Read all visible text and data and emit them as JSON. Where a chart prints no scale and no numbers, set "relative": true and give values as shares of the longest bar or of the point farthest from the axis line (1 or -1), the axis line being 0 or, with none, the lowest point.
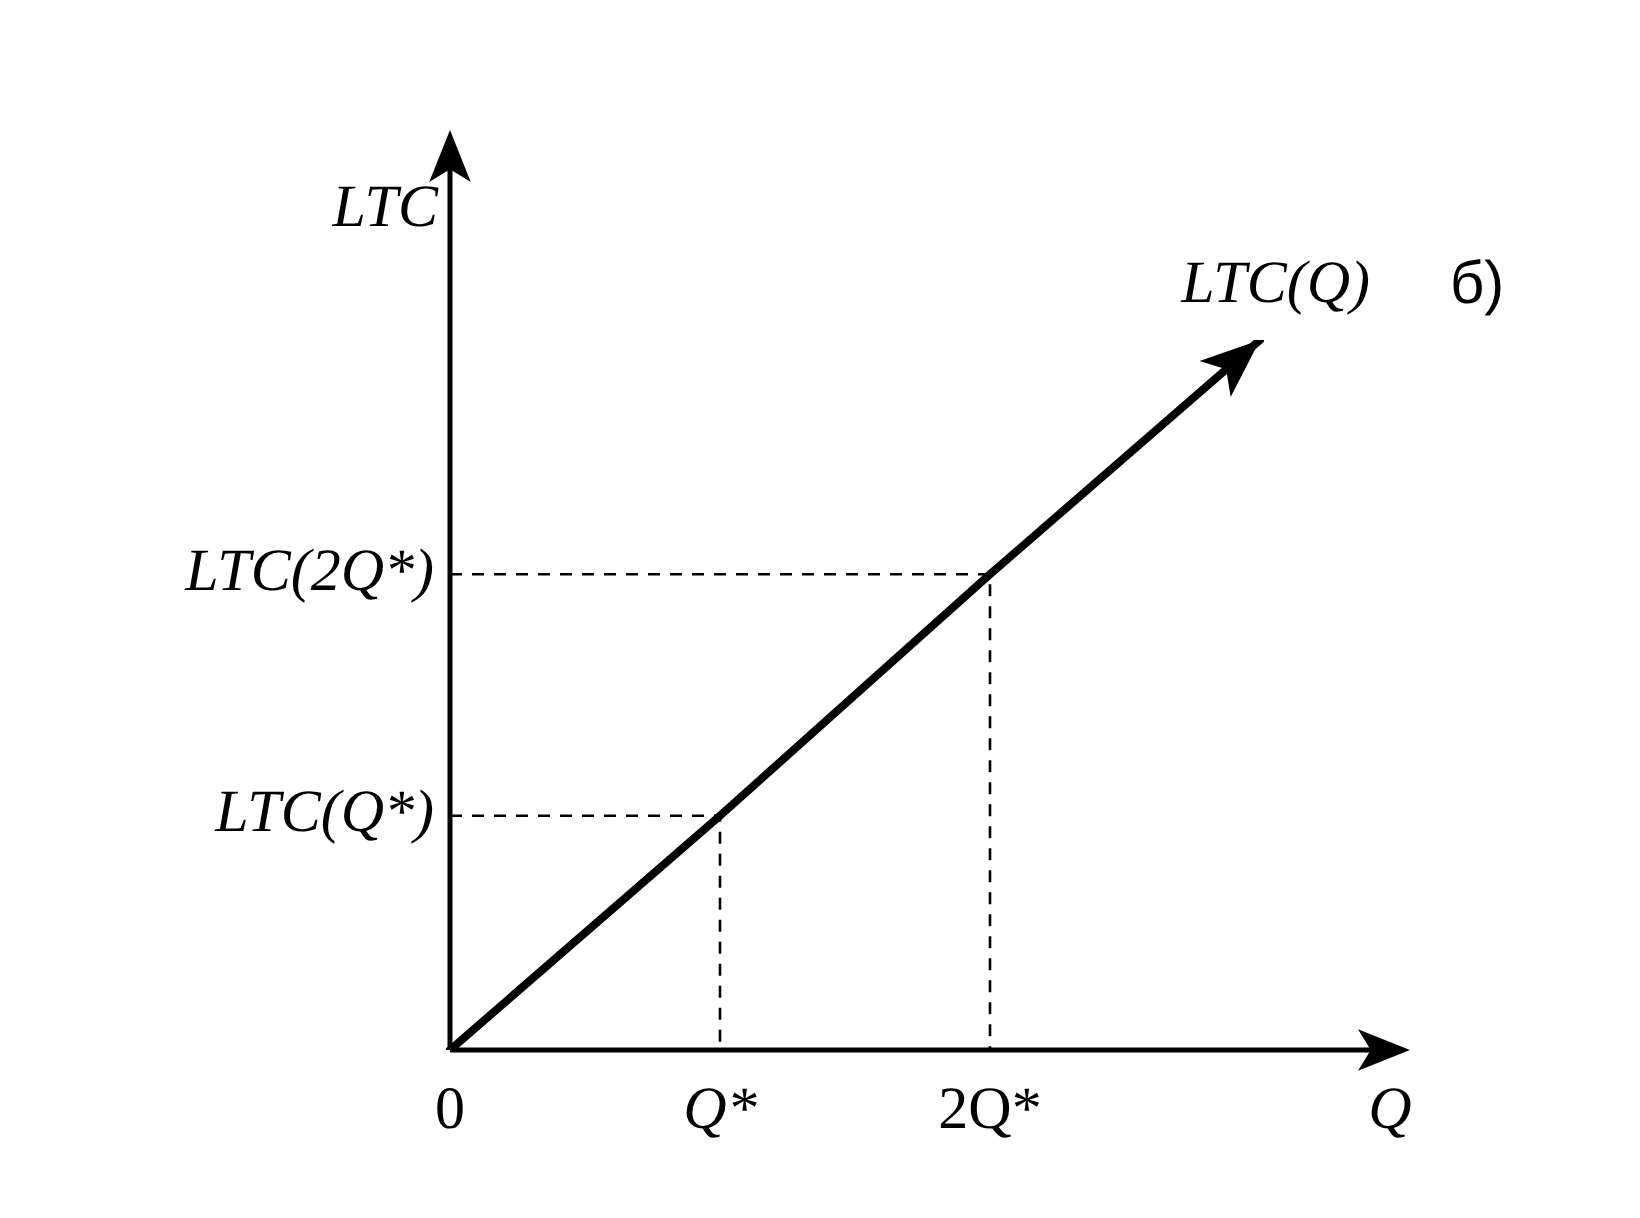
{
  "chart_data": {
    "type": "line",
    "relative": true,
    "xlabel": "Q",
    "ylabel": "LTC",
    "categories": [
      "0",
      "Q*",
      "2Q*",
      null
    ],
    "series": [
      {
        "color": "#000000",
        "values": [
          0,
          0.33,
          0.67,
          1
        ]
      }
    ],
    "annotations": [
      "LTC(Q*)",
      "LTC(2Q*)",
      "LTC(Q)",
      "б)"
    ],
    "legend": false,
    "marker": "none",
    "line_style": "solid"
  }
}
